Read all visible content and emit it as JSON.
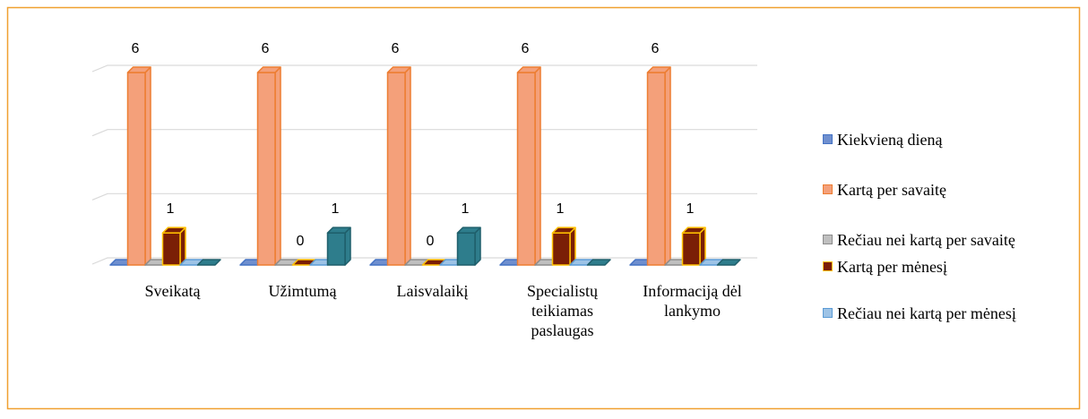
{
  "chart_data": {
    "type": "bar3d",
    "categories": [
      "Sveikatą",
      "Užimtumą",
      "Laisvalaikį",
      "Specialistų teikiamas paslaugas",
      "Informaciją dėl lankymo"
    ],
    "ylim": [
      0,
      6
    ],
    "yticks": [
      0,
      2,
      4,
      6
    ],
    "grid": true,
    "legend": "right",
    "series": [
      {
        "name": "Kiekvieną dieną",
        "color": "#6f8fcf",
        "edge": "#4472c4",
        "values": [
          0,
          0,
          0,
          0,
          0
        ]
      },
      {
        "name": "Kartą per savaitę",
        "color": "#f4a07a",
        "edge": "#ed7d31",
        "values": [
          6,
          6,
          6,
          6,
          6
        ],
        "value_labels": [
          "6",
          "6",
          "6",
          "6",
          "6"
        ]
      },
      {
        "name": "Rečiau nei kartą per savaitę",
        "color": "#bfbfbf",
        "edge": "#8c8c8c",
        "values": [
          0,
          0,
          0,
          0,
          0
        ]
      },
      {
        "name": "Kartą per mėnesį",
        "color": "#7a1f06",
        "edge": "#ffc000",
        "values": [
          1,
          0,
          0,
          1,
          1
        ],
        "value_labels": [
          "1",
          "0",
          "0",
          "1",
          "1"
        ]
      },
      {
        "name": "Rečiau nei kartą per mėnesį",
        "color": "#9dc3e6",
        "edge": "#5b9bd5",
        "values": [
          0,
          0,
          0,
          0,
          0
        ]
      },
      {
        "color": "#2e7d8c",
        "edge": "#1f5f6b",
        "values": [
          0,
          1,
          1,
          0,
          0
        ],
        "value_labels": [
          null,
          "1",
          "1",
          null,
          null
        ]
      }
    ]
  }
}
